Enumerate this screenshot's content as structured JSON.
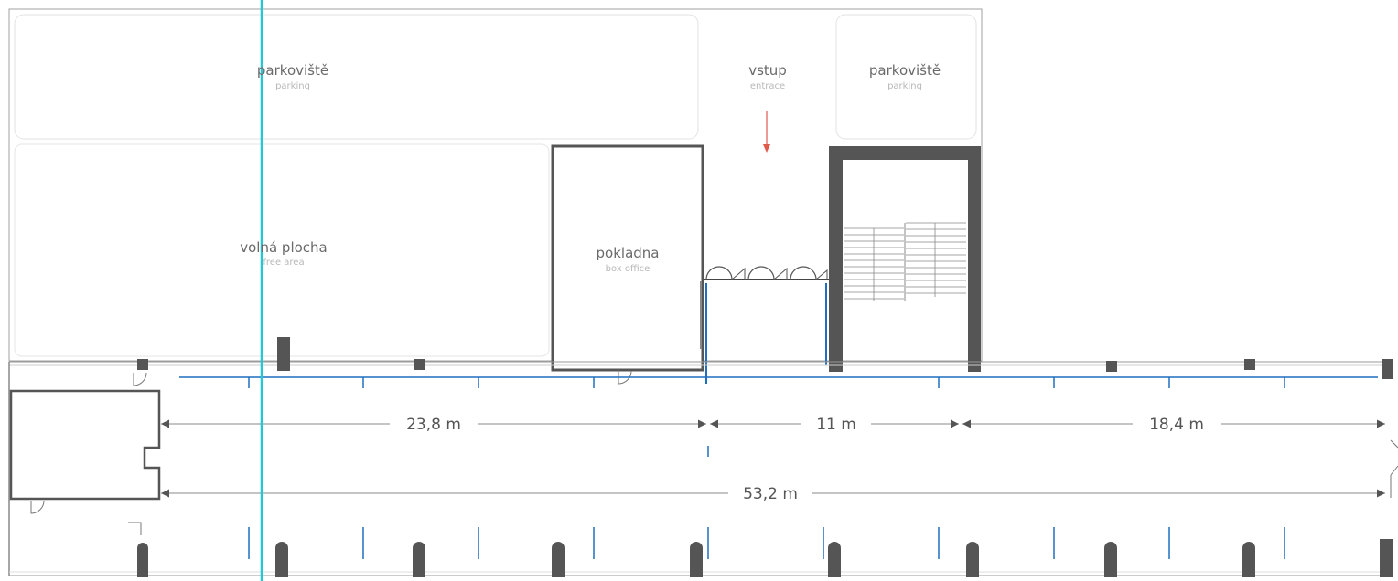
{
  "zones": {
    "parking_left": {
      "label": "parkoviště",
      "sublabel": "parking"
    },
    "entrance": {
      "label": "vstup",
      "sublabel": "entrace"
    },
    "parking_right": {
      "label": "parkoviště",
      "sublabel": "parking"
    },
    "free_area": {
      "label": "volná plocha",
      "sublabel": "free area"
    },
    "box_office": {
      "label": "pokladna",
      "sublabel": "box office"
    }
  },
  "dimensions": {
    "segment_1": "23,8 m",
    "segment_2": "11 m",
    "segment_3": "18,4 m",
    "total": "53,2 m"
  },
  "colors": {
    "wall": "#555555",
    "dimension_line": "#888888",
    "blue_line": "#1f6fc0",
    "cyan_line": "#22c8d6",
    "arrow": "#e05a4a"
  }
}
